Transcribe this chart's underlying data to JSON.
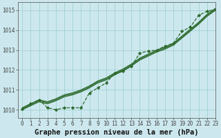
{
  "title": "Graphe pression niveau de la mer (hPa)",
  "background_color": "#cce8ee",
  "plot_bg_color": "#cce8ee",
  "grid_color": "#99cccc",
  "line_color": "#2d6a2d",
  "xlim": [
    -0.5,
    23
  ],
  "ylim": [
    1009.6,
    1015.4
  ],
  "yticks": [
    1010,
    1011,
    1012,
    1013,
    1014,
    1015
  ],
  "xticks": [
    0,
    1,
    2,
    3,
    4,
    5,
    6,
    7,
    8,
    9,
    10,
    11,
    12,
    13,
    14,
    15,
    16,
    17,
    18,
    19,
    20,
    21,
    22,
    23
  ],
  "series_smooth": [
    [
      1010.05,
      1010.25,
      1010.45,
      1010.35,
      1010.5,
      1010.7,
      1010.8,
      1010.95,
      1011.15,
      1011.4,
      1011.55,
      1011.8,
      1012.0,
      1012.25,
      1012.55,
      1012.75,
      1012.95,
      1013.1,
      1013.3,
      1013.65,
      1014.0,
      1014.35,
      1014.75,
      1015.05
    ],
    [
      1010.1,
      1010.3,
      1010.5,
      1010.4,
      1010.55,
      1010.75,
      1010.85,
      1011.0,
      1011.2,
      1011.45,
      1011.6,
      1011.85,
      1012.05,
      1012.3,
      1012.6,
      1012.8,
      1013.0,
      1013.15,
      1013.35,
      1013.7,
      1014.05,
      1014.4,
      1014.8,
      1015.1
    ],
    [
      1010.0,
      1010.2,
      1010.4,
      1010.3,
      1010.45,
      1010.65,
      1010.75,
      1010.9,
      1011.1,
      1011.35,
      1011.5,
      1011.75,
      1011.95,
      1012.2,
      1012.5,
      1012.7,
      1012.9,
      1013.05,
      1013.25,
      1013.6,
      1013.95,
      1014.3,
      1014.7,
      1015.0
    ]
  ],
  "series_dotted": [
    1010.05,
    1010.3,
    1010.5,
    1010.1,
    1010.0,
    1010.1,
    1010.1,
    1010.1,
    1010.85,
    1011.1,
    1011.35,
    1011.85,
    1011.95,
    1012.2,
    1012.85,
    1012.95,
    1013.0,
    1013.2,
    1013.35,
    1013.95,
    1014.15,
    1014.75,
    1014.95,
    1015.05
  ],
  "linewidth": 0.9,
  "dotted_linewidth": 0.9,
  "marker": "D",
  "markersize": 2.2,
  "title_fontsize": 7.5,
  "tick_fontsize": 5.5
}
